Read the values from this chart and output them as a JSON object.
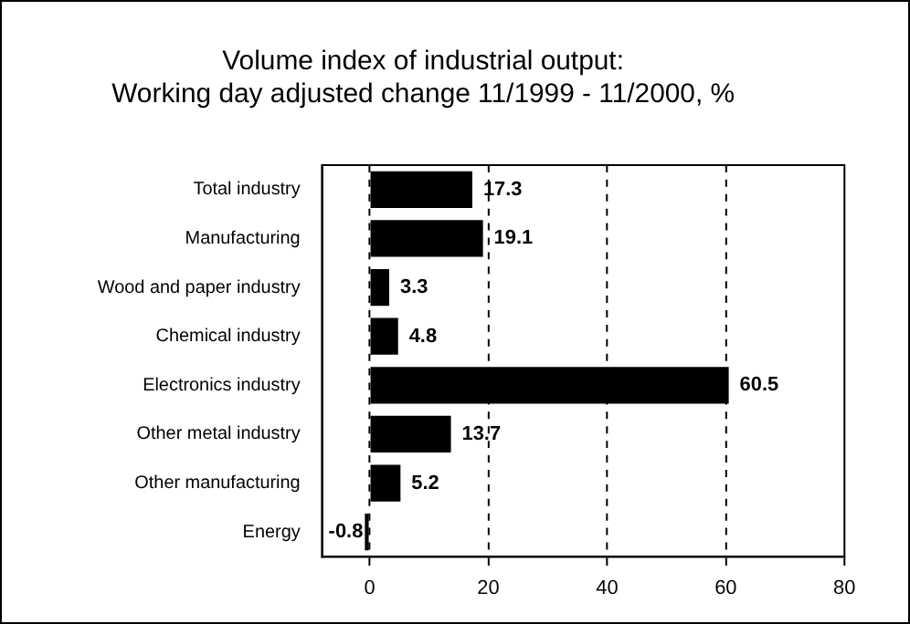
{
  "chart_data": {
    "type": "bar",
    "orientation": "horizontal",
    "title": "Volume index of industrial output:\nWorking day adjusted change 11/1999 - 11/2000, %",
    "categories": [
      "Total industry",
      "Manufacturing",
      "Wood and paper industry",
      "Chemical industry",
      "Electronics industry",
      "Other metal industry",
      "Other manufacturing",
      "Energy"
    ],
    "values": [
      17.3,
      19.1,
      3.3,
      4.8,
      60.5,
      13.7,
      5.2,
      -0.8
    ],
    "color": "#000000",
    "xlim": [
      -8,
      80
    ],
    "xticks": [
      0,
      20,
      40,
      60,
      80
    ],
    "grid": "x",
    "data_labels": true,
    "legend": false
  }
}
